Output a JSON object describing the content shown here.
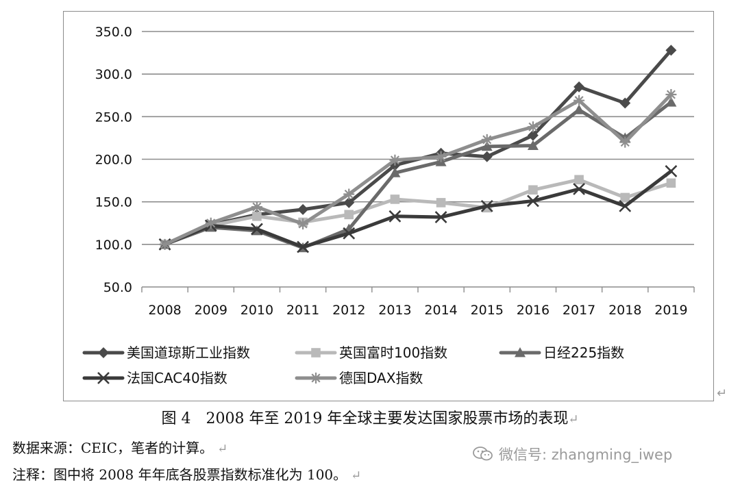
{
  "chart_data": {
    "type": "line",
    "categories": [
      "2008",
      "2009",
      "2010",
      "2011",
      "2012",
      "2013",
      "2014",
      "2015",
      "2016",
      "2017",
      "2018",
      "2019"
    ],
    "ylim": [
      50,
      350
    ],
    "yticks": [
      "50.0",
      "100.0",
      "150.0",
      "200.0",
      "250.0",
      "300.0",
      "350.0"
    ],
    "grid": true,
    "legend_position": "bottom",
    "series": [
      {
        "name": "美国道琼斯工业指数",
        "color": "#4a4a4a",
        "marker": "diamond",
        "values": [
          100,
          123,
          135,
          141,
          149,
          193,
          207,
          203,
          228,
          285,
          266,
          328
        ]
      },
      {
        "name": "英国富时100指数",
        "color": "#b9b9b9",
        "marker": "square",
        "values": [
          100,
          122,
          133,
          126,
          135,
          153,
          149,
          143,
          164,
          176,
          155,
          172
        ]
      },
      {
        "name": "日经225指数",
        "color": "#6a6a6a",
        "marker": "triangle",
        "values": [
          100,
          120,
          116,
          96,
          118,
          184,
          197,
          215,
          216,
          258,
          225,
          267
        ]
      },
      {
        "name": "法国CAC40指数",
        "color": "#3a3a3a",
        "marker": "x",
        "values": [
          100,
          122,
          118,
          97,
          113,
          133,
          132,
          145,
          151,
          165,
          145,
          186
        ]
      },
      {
        "name": "德国DAX指数",
        "color": "#8e8e8e",
        "marker": "star",
        "values": [
          100,
          125,
          144,
          124,
          159,
          199,
          203,
          223,
          238,
          269,
          220,
          276
        ]
      }
    ]
  },
  "caption": "图 4　2008 年至 2019 年全球主要发达国家股票市场的表现",
  "notes": {
    "source": "数据来源：CEIC，笔者的计算。",
    "remark": "注释：图中将 2008 年年底各股票指数标准化为 100。"
  },
  "watermark": {
    "icon": "wechat-icon",
    "text": "微信号: zhangming_iwep"
  },
  "return_mark": "↵"
}
